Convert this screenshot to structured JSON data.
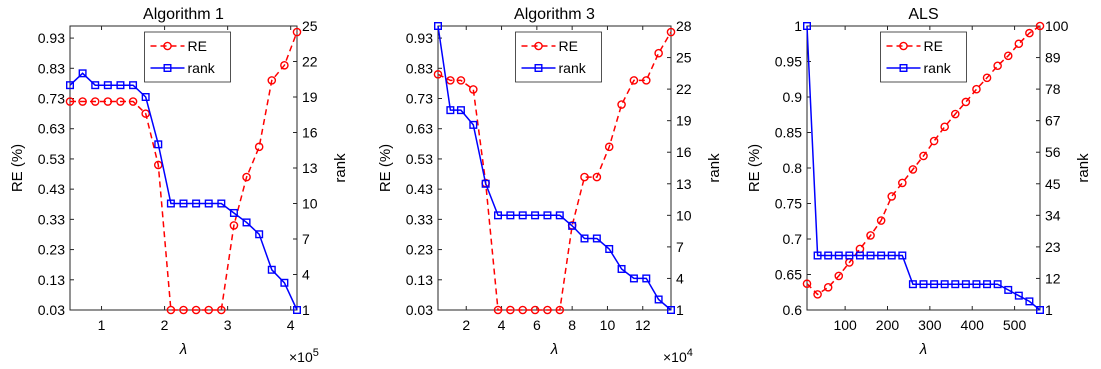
{
  "chart_data": [
    {
      "type": "line",
      "title": "Algorithm 1",
      "xlabel": "λ",
      "x_exponent": "×10^5",
      "xlim": [
        0.5,
        4.1
      ],
      "xticks": [
        1,
        2,
        3,
        4
      ],
      "ylabel_left": "RE (%)",
      "ylim_left": [
        0.03,
        0.97
      ],
      "yticks_left": [
        "0.03",
        "0.13",
        "0.23",
        "0.33",
        "0.43",
        "0.53",
        "0.63",
        "0.73",
        "0.83",
        "0.93"
      ],
      "ylabel_right": "rank",
      "ylim_right": [
        1,
        25
      ],
      "yticks_right": [
        "1",
        "4",
        "7",
        "10",
        "13",
        "16",
        "19",
        "22",
        "25"
      ],
      "grid": false,
      "legend": "top-center",
      "series": [
        {
          "name": "RE",
          "axis": "left",
          "color": "#ff0000",
          "style": "dashed",
          "marker": "circle",
          "x": [
            0.5,
            0.7,
            0.9,
            1.1,
            1.3,
            1.5,
            1.7,
            1.9,
            2.1,
            2.3,
            2.5,
            2.7,
            2.9,
            3.1,
            3.3,
            3.5,
            3.7,
            3.9,
            4.1
          ],
          "y": [
            0.72,
            0.72,
            0.72,
            0.72,
            0.72,
            0.72,
            0.68,
            0.51,
            0.03,
            0.03,
            0.03,
            0.03,
            0.03,
            0.31,
            0.47,
            0.57,
            0.79,
            0.84,
            0.95
          ]
        },
        {
          "name": "rank",
          "axis": "right",
          "color": "#0000ff",
          "style": "solid",
          "marker": "square",
          "x": [
            0.5,
            0.7,
            0.9,
            1.1,
            1.3,
            1.5,
            1.7,
            1.9,
            2.1,
            2.3,
            2.5,
            2.7,
            2.9,
            3.1,
            3.3,
            3.5,
            3.7,
            3.9,
            4.1
          ],
          "y": [
            20,
            21,
            20,
            20,
            20,
            20,
            19,
            15,
            10,
            10,
            10,
            10,
            10,
            9.2,
            8.4,
            7.4,
            4.4,
            3.3,
            1
          ]
        }
      ]
    },
    {
      "type": "line",
      "title": "Algorithm 3",
      "xlabel": "λ",
      "x_exponent": "×10^4",
      "xlim": [
        0.4,
        13.6
      ],
      "xticks": [
        2,
        4,
        6,
        8,
        10,
        12
      ],
      "ylabel_left": "RE (%)",
      "ylim_left": [
        0.03,
        0.97
      ],
      "yticks_left": [
        "0.03",
        "0.13",
        "0.23",
        "0.33",
        "0.43",
        "0.53",
        "0.63",
        "0.73",
        "0.83",
        "0.93"
      ],
      "ylabel_right": "rank",
      "ylim_right": [
        1,
        28
      ],
      "yticks_right": [
        "1",
        "4",
        "7",
        "10",
        "13",
        "16",
        "19",
        "22",
        "25",
        "28"
      ],
      "grid": false,
      "legend": "top-center",
      "series": [
        {
          "name": "RE",
          "axis": "left",
          "color": "#ff0000",
          "style": "dashed",
          "marker": "circle",
          "x": [
            0.4,
            1.1,
            1.7,
            2.4,
            3.1,
            3.8,
            4.5,
            5.2,
            5.9,
            6.6,
            7.3,
            8.0,
            8.7,
            9.4,
            10.1,
            10.8,
            11.5,
            12.2,
            12.9,
            13.6
          ],
          "y": [
            0.81,
            0.79,
            0.79,
            0.76,
            0.45,
            0.03,
            0.03,
            0.03,
            0.03,
            0.03,
            0.03,
            0.31,
            0.47,
            0.47,
            0.57,
            0.71,
            0.79,
            0.79,
            0.88,
            0.95
          ]
        },
        {
          "name": "rank",
          "axis": "right",
          "color": "#0000ff",
          "style": "solid",
          "marker": "square",
          "x": [
            0.4,
            1.1,
            1.7,
            2.4,
            3.1,
            3.8,
            4.5,
            5.2,
            5.9,
            6.6,
            7.3,
            8.0,
            8.7,
            9.4,
            10.1,
            10.8,
            11.5,
            12.2,
            12.9,
            13.6
          ],
          "y": [
            28,
            20,
            20,
            18.6,
            13,
            10,
            10,
            10,
            10,
            10,
            10,
            9,
            7.8,
            7.8,
            6.8,
            4.9,
            4,
            4,
            2,
            1
          ]
        }
      ]
    },
    {
      "type": "line",
      "title": "ALS",
      "xlabel": "λ",
      "xlim": [
        10,
        560
      ],
      "xticks": [
        100,
        200,
        300,
        400,
        500
      ],
      "ylabel_left": "RE (%)",
      "ylim_left": [
        0.6,
        1.0
      ],
      "yticks_left": [
        "0.6",
        "0.65",
        "0.7",
        "0.75",
        "0.8",
        "0.85",
        "0.9",
        "0.95",
        "1"
      ],
      "ylabel_right": "rank",
      "ylim_right": [
        1,
        100
      ],
      "yticks_right": [
        "1",
        "12",
        "23",
        "34",
        "45",
        "56",
        "67",
        "78",
        "89",
        "100"
      ],
      "grid": false,
      "legend": "top-center",
      "series": [
        {
          "name": "RE",
          "axis": "left",
          "color": "#ff0000",
          "style": "dashed",
          "marker": "circle",
          "x": [
            10,
            35,
            60,
            85,
            110,
            135,
            160,
            185,
            210,
            235,
            260,
            285,
            310,
            335,
            360,
            385,
            410,
            435,
            460,
            485,
            510,
            535,
            560
          ],
          "y": [
            0.637,
            0.622,
            0.632,
            0.648,
            0.667,
            0.686,
            0.705,
            0.726,
            0.76,
            0.779,
            0.798,
            0.817,
            0.838,
            0.858,
            0.876,
            0.893,
            0.911,
            0.927,
            0.944,
            0.958,
            0.975,
            0.99,
            1.0
          ]
        },
        {
          "name": "rank",
          "axis": "right",
          "color": "#0000ff",
          "style": "solid",
          "marker": "square",
          "x": [
            10,
            35,
            60,
            85,
            110,
            135,
            160,
            185,
            210,
            235,
            260,
            285,
            310,
            335,
            360,
            385,
            410,
            435,
            460,
            485,
            510,
            535,
            560
          ],
          "y": [
            100,
            20,
            20,
            20,
            20,
            20,
            20,
            20,
            20,
            20,
            10,
            10,
            10,
            10,
            10,
            10,
            10,
            10,
            10,
            8,
            6,
            4,
            1
          ]
        }
      ]
    }
  ]
}
